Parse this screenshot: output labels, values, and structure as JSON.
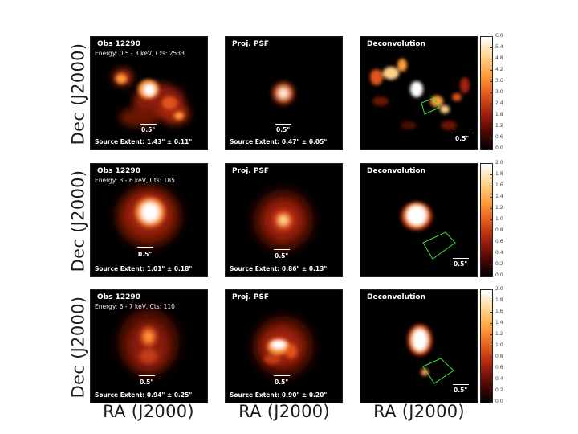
{
  "axes": {
    "ylabel": "Dec (J2000)",
    "xlabel": "RA (J2000)"
  },
  "rows": [
    {
      "obs": {
        "title": "Obs 12290",
        "subtitle": "Energy: 0.5 - 3 keV, Cts: 2533",
        "scale": "0.5\"",
        "extent": "Source Extent: 1.43\" ± 0.11\""
      },
      "psf": {
        "title": "Proj. PSF",
        "scale": "0.5\"",
        "extent": "Source Extent: 0.47\" ± 0.05\""
      },
      "deconv": {
        "title": "Deconvolution",
        "scale": "0.5\""
      },
      "colorbar_ticks": [
        "6.0",
        "5.4",
        "4.8",
        "4.2",
        "3.6",
        "3.0",
        "2.4",
        "1.8",
        "1.2",
        "0.6",
        "0.0"
      ]
    },
    {
      "obs": {
        "title": "Obs 12290",
        "subtitle": "Energy: 3 - 6 keV, Cts: 185",
        "scale": "0.5\"",
        "extent": "Source Extent: 1.01\" ± 0.18\""
      },
      "psf": {
        "title": "Proj. PSF",
        "scale": "0.5\"",
        "extent": "Source Extent: 0.86\" ± 0.13\""
      },
      "deconv": {
        "title": "Deconvolution",
        "scale": "0.5\""
      },
      "colorbar_ticks": [
        "2.0",
        "1.8",
        "1.6",
        "1.4",
        "1.2",
        "1.0",
        "0.8",
        "0.6",
        "0.4",
        "0.2",
        "0.0"
      ]
    },
    {
      "obs": {
        "title": "Obs 12290",
        "subtitle": "Energy: 6 - 7 keV, Cts: 110",
        "scale": "0.5\"",
        "extent": "Source Extent: 0.94\" ± 0.25\""
      },
      "psf": {
        "title": "Proj. PSF",
        "scale": "0.5\"",
        "extent": "Source Extent: 0.90\" ± 0.20\""
      },
      "deconv": {
        "title": "Deconvolution",
        "scale": "0.5\""
      },
      "colorbar_ticks": [
        "2.0",
        "1.8",
        "1.6",
        "1.4",
        "1.2",
        "1.0",
        "0.8",
        "0.6",
        "0.4",
        "0.2",
        "0.0"
      ]
    }
  ],
  "colors": {
    "background": "#000000",
    "hot": "#ffffff",
    "mid": "#ff9a3a",
    "low": "#a12010",
    "region_outline": "#35e03a"
  }
}
